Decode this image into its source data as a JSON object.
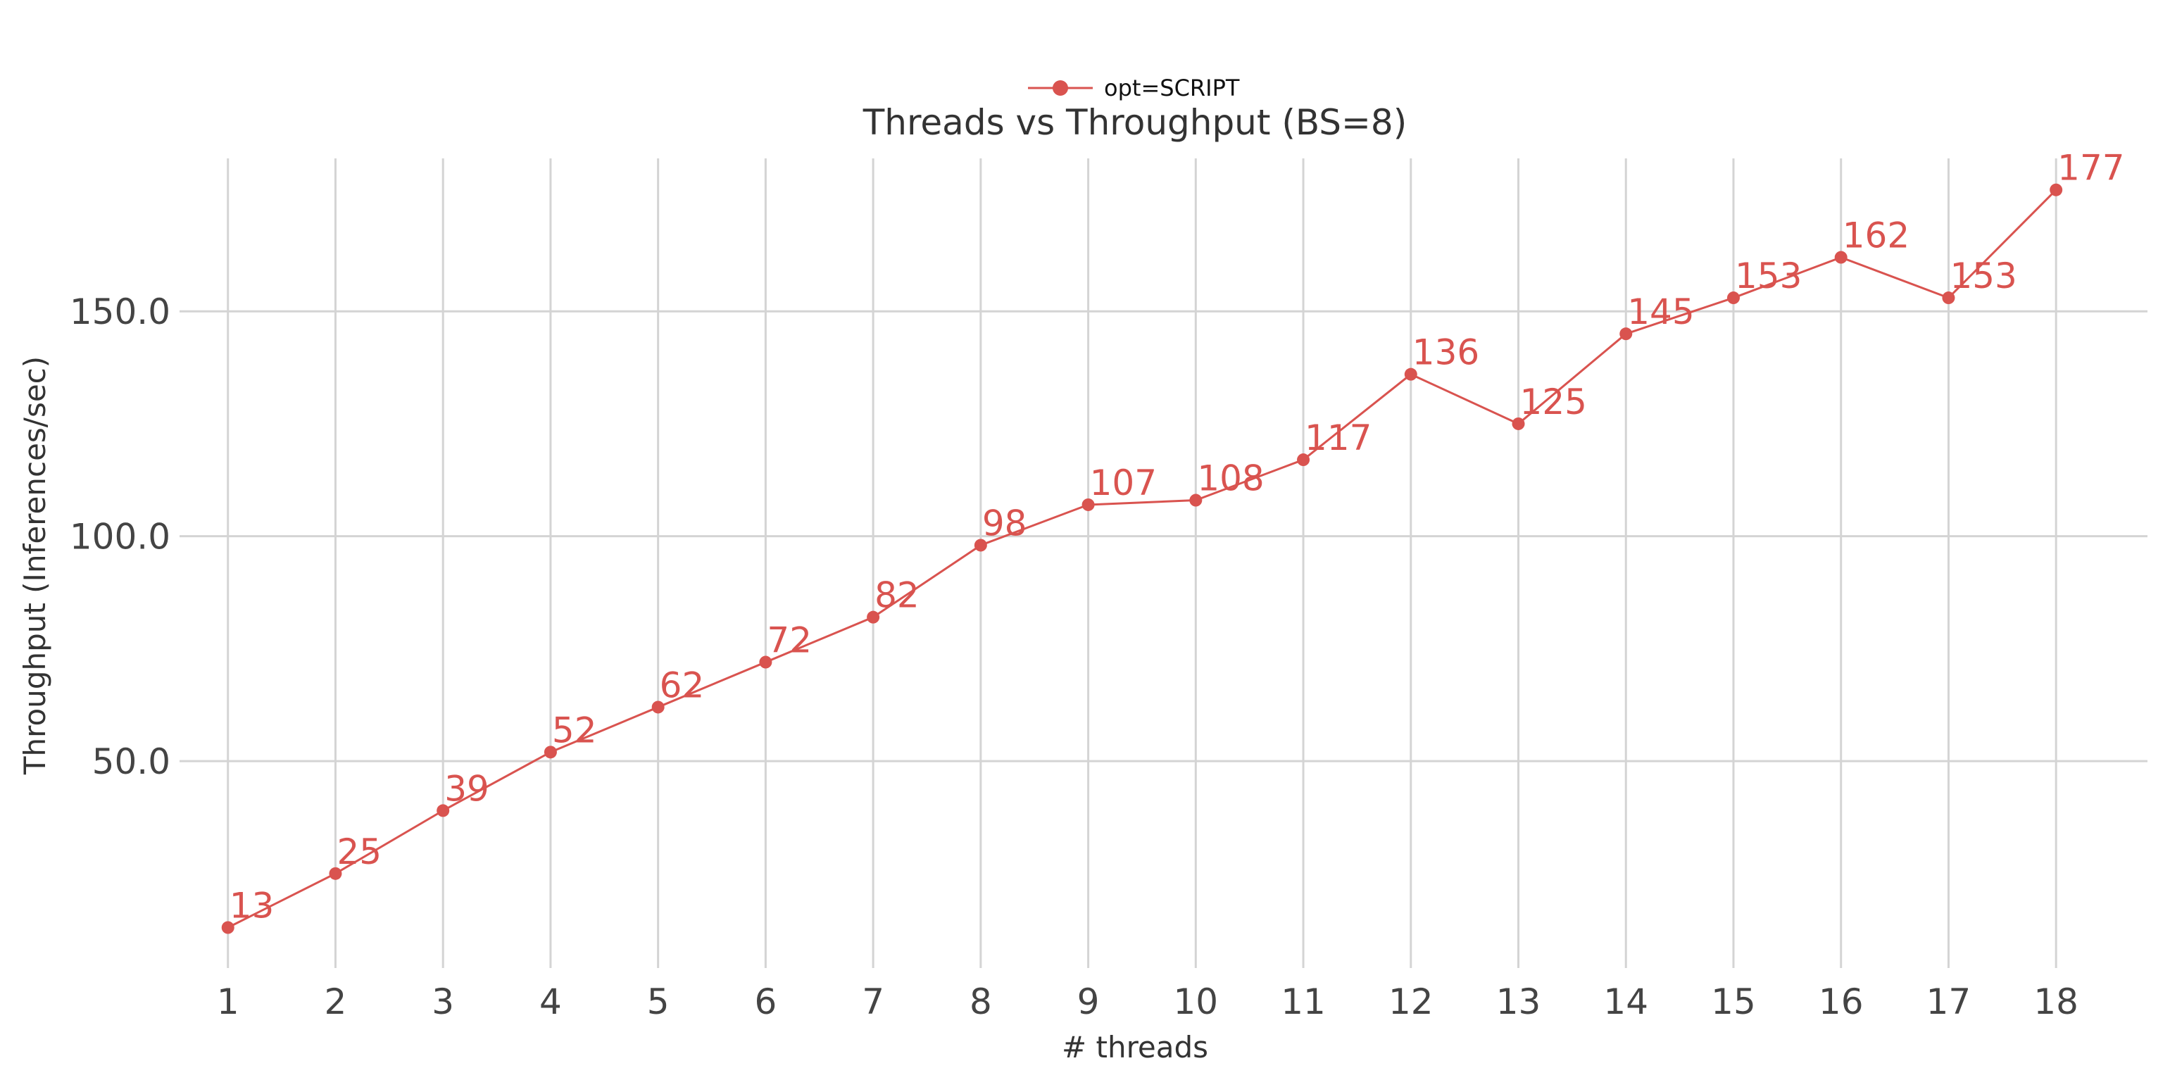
{
  "chart_data": {
    "type": "line",
    "title": "Threads vs Throughput (BS=8)",
    "xlabel": "# threads",
    "ylabel": "Throughput (Inferences/sec)",
    "x": [
      1,
      2,
      3,
      4,
      5,
      6,
      7,
      8,
      9,
      10,
      11,
      12,
      13,
      14,
      15,
      16,
      17,
      18
    ],
    "x_tick_labels": [
      "1",
      "2",
      "3",
      "4",
      "5",
      "6",
      "7",
      "8",
      "9",
      "10",
      "11",
      "12",
      "13",
      "14",
      "15",
      "16",
      "17",
      "18"
    ],
    "y_ticks": [
      50,
      100,
      150
    ],
    "y_tick_labels": [
      "50.0",
      "100.0",
      "150.0"
    ],
    "ylim": [
      4,
      184
    ],
    "xlim": [
      0.55,
      18.85
    ],
    "grid": true,
    "legend_position": "top-center",
    "series": [
      {
        "name": "opt=SCRIPT",
        "color": "#d9534f",
        "values": [
          13,
          25,
          39,
          52,
          62,
          72,
          82,
          98,
          107,
          108,
          117,
          136,
          125,
          145,
          153,
          162,
          153,
          177
        ],
        "data_labels": [
          "13",
          "25",
          "39",
          "52",
          "62",
          "72",
          "82",
          "98",
          "107",
          "108",
          "117",
          "136",
          "125",
          "145",
          "153",
          "162",
          "153",
          "177"
        ]
      }
    ]
  }
}
